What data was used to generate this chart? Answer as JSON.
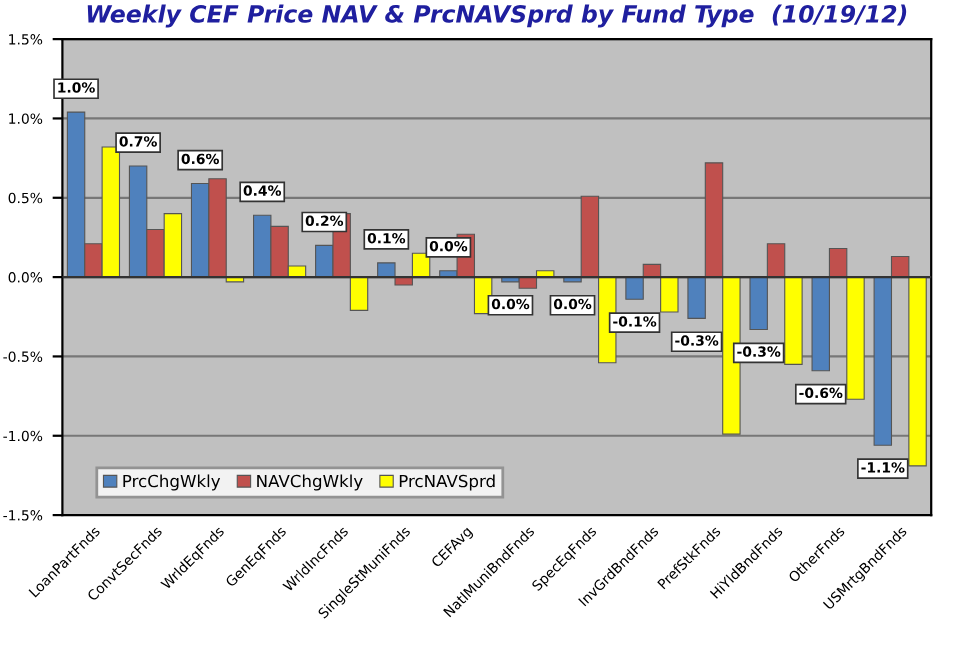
{
  "chart_data": {
    "type": "bar",
    "title": "Weekly CEF Price NAV & PrcNAVSprd by Fund Type  (10/19/12)",
    "categories": [
      "LoanPartFnds",
      "ConvtSecFnds",
      "WrldEqFnds",
      "GenEqFnds",
      "WrldIncFnds",
      "SingleStMuniFnds",
      "CEFAvg",
      "NatlMuniBndFnds",
      "SpecEqFnds",
      "InvGrdBndFnds",
      "PrefStkFnds",
      "HiYldBndFnds",
      "OtherFnds",
      "USMrtgBndFnds"
    ],
    "series": [
      {
        "name": "PrcChgWkly",
        "color": "#4f81bd",
        "values": [
          1.04,
          0.7,
          0.59,
          0.39,
          0.2,
          0.09,
          0.04,
          -0.03,
          -0.03,
          -0.14,
          -0.26,
          -0.33,
          -0.59,
          -1.06
        ],
        "value_labels": [
          "1.0%",
          "0.7%",
          "0.6%",
          "0.4%",
          "0.2%",
          "0.1%",
          "0.0%",
          "0.0%",
          "0.0%",
          "-0.1%",
          "-0.3%",
          "-0.3%",
          "-0.6%",
          "-1.1%"
        ]
      },
      {
        "name": "NAVChgWkly",
        "color": "#c0504d",
        "values": [
          0.21,
          0.3,
          0.62,
          0.32,
          0.4,
          -0.05,
          0.27,
          -0.07,
          0.51,
          0.08,
          0.72,
          0.21,
          0.18,
          0.13
        ]
      },
      {
        "name": "PrcNAVSprd",
        "color": "#ffff00",
        "values": [
          0.82,
          0.4,
          -0.03,
          0.07,
          -0.21,
          0.15,
          -0.23,
          0.04,
          -0.54,
          -0.22,
          -0.99,
          -0.55,
          -0.77,
          -1.19
        ]
      }
    ],
    "ylim": [
      -1.5,
      1.5
    ],
    "yticks": [
      {
        "value": -1.5,
        "label": "-1.5%"
      },
      {
        "value": -1.0,
        "label": "-1.0%"
      },
      {
        "value": -0.5,
        "label": "-0.5%"
      },
      {
        "value": 0.0,
        "label": "0.0%"
      },
      {
        "value": 0.5,
        "label": "0.5%"
      },
      {
        "value": 1.0,
        "label": "1.0%"
      },
      {
        "value": 1.5,
        "label": "1.5%"
      }
    ],
    "grid": "y",
    "legend": "bottom left"
  }
}
